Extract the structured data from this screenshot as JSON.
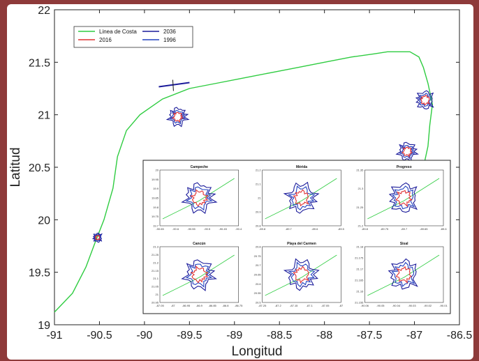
{
  "chart_data": {
    "type": "line",
    "xlabel": "Longitud",
    "ylabel": "Latitud",
    "xlim": [
      -91,
      -86.5
    ],
    "ylim": [
      19,
      22
    ],
    "xticks": [
      "-91",
      "-90.5",
      "-90",
      "-89.5",
      "-89",
      "-88.5",
      "-88",
      "-87.5",
      "-87",
      "-86.5"
    ],
    "yticks": [
      "19",
      "19.5",
      "20",
      "20.5",
      "21",
      "21.5",
      "22"
    ],
    "legend": {
      "position": "top-left",
      "entries": [
        {
          "name": "Linea de Costa",
          "color": "#2ecc40"
        },
        {
          "name": "2036",
          "color": "#1a1a9a"
        },
        {
          "name": "2016",
          "color": "#e03030"
        },
        {
          "name": "1996",
          "color": "#2040c0"
        }
      ]
    },
    "series": [
      {
        "name": "Linea de Costa",
        "color": "#2ecc40",
        "x": [
          -91,
          -90.8,
          -90.65,
          -90.55,
          -90.45,
          -90.35,
          -90.3,
          -90.2,
          -90.05,
          -89.8,
          -89.5,
          -89.2,
          -88.9,
          -88.6,
          -88.3,
          -88.0,
          -87.7,
          -87.45,
          -87.3,
          -87.15,
          -87.05,
          -86.95,
          -86.9,
          -86.85,
          -86.8,
          -86.83,
          -86.85,
          -86.9
        ],
        "y": [
          19.12,
          19.3,
          19.55,
          19.78,
          20.0,
          20.3,
          20.6,
          20.85,
          21.0,
          21.15,
          21.25,
          21.3,
          21.35,
          21.4,
          21.45,
          21.5,
          21.55,
          21.58,
          21.6,
          21.6,
          21.6,
          21.55,
          21.45,
          21.3,
          21.1,
          20.9,
          20.7,
          20.5
        ]
      }
    ],
    "cities": [
      {
        "name": "Campeche",
        "lon": -90.52,
        "lat": 19.83
      },
      {
        "name": "Mérida",
        "lon": -89.63,
        "lat": 20.98
      },
      {
        "name": "Progreso",
        "lon": -89.67,
        "lat": 21.28
      },
      {
        "name": "Cancún",
        "lon": -86.88,
        "lat": 21.14
      },
      {
        "name": "Playa del Carmen",
        "lon": -87.08,
        "lat": 20.65
      }
    ],
    "inset_panels": [
      {
        "title": "Campeche",
        "xticks": [
          "-90.65",
          "-90.6",
          "-90.55",
          "-90.5",
          "-90.45",
          "-90.4"
        ],
        "yticks": [
          "20",
          "19.95",
          "19.9",
          "19.85",
          "19.8",
          "19.75",
          "19.7"
        ]
      },
      {
        "title": "Mérida",
        "xticks": [
          "-89.8",
          "-89.7",
          "-89.6",
          "-89.5"
        ],
        "yticks": [
          "21.2",
          "21.1",
          "21",
          "20.9",
          "20.8"
        ]
      },
      {
        "title": "Progreso",
        "xticks": [
          "-89.8",
          "-89.75",
          "-89.7",
          "-89.65",
          "-89.6"
        ],
        "yticks": [
          "21.35",
          "21.3",
          "21.25",
          "21.2"
        ]
      },
      {
        "title": "Cancún",
        "xticks": [
          "-87.05",
          "-87",
          "-86.95",
          "-86.9",
          "-86.85",
          "-86.8",
          "-86.75"
        ],
        "yticks": [
          "21.3",
          "21.25",
          "21.2",
          "21.15",
          "21.1",
          "21.05",
          "21",
          "20.95"
        ]
      },
      {
        "title": "Playa del Carmen",
        "xticks": [
          "-87.25",
          "-87.2",
          "-87.15",
          "-87.1",
          "-87.05",
          "-87"
        ],
        "yticks": [
          "20.8",
          "20.75",
          "20.7",
          "20.65",
          "20.6",
          "20.55",
          "20.5"
        ]
      },
      {
        "title": "Sisal",
        "xticks": [
          "-90.06",
          "-90.05",
          "-90.04",
          "-90.03",
          "-90.02",
          "-90.01"
        ],
        "yticks": [
          "21.18",
          "21.175",
          "21.17",
          "21.165",
          "21.16",
          "21.155"
        ]
      }
    ]
  }
}
